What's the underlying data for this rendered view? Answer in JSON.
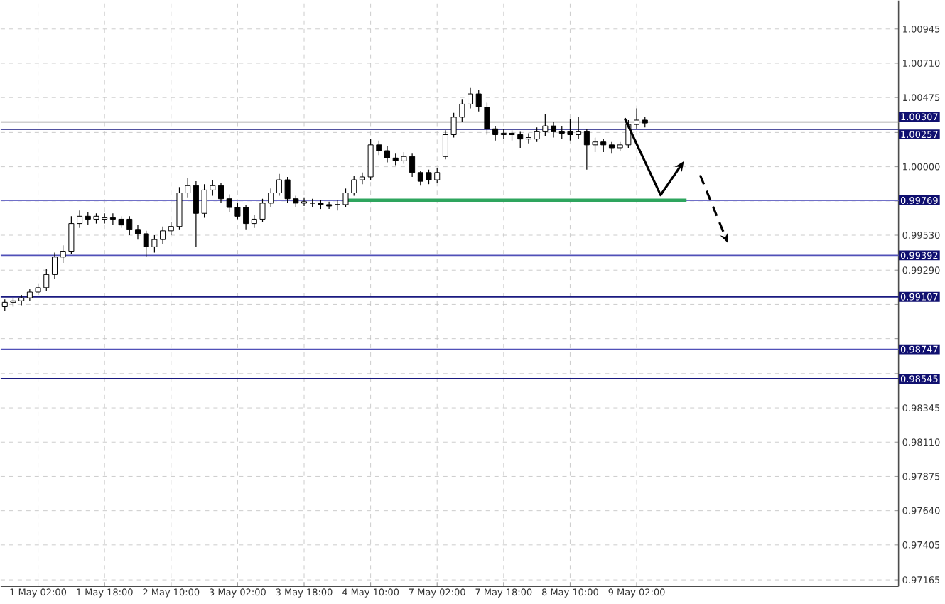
{
  "chart_data": {
    "type": "candlestick",
    "color": "#000000",
    "grid": true,
    "ylim": [
      0.9712,
      1.0114
    ],
    "categories": [
      null,
      null,
      null,
      null,
      "1 May 02:00",
      null,
      null,
      null,
      null,
      null,
      null,
      null,
      "1 May 18:00",
      null,
      null,
      null,
      null,
      null,
      null,
      null,
      "2 May 10:00",
      null,
      null,
      null,
      null,
      null,
      null,
      null,
      "3 May 02:00",
      null,
      null,
      null,
      null,
      null,
      null,
      null,
      "3 May 18:00",
      null,
      null,
      null,
      null,
      null,
      null,
      null,
      "4 May 10:00",
      null,
      null,
      null,
      null,
      null,
      null,
      null,
      "7 May 02:00",
      null,
      null,
      null,
      null,
      null,
      null,
      null,
      "7 May 18:00",
      null,
      null,
      null,
      null,
      null,
      null,
      null,
      "8 May 10:00",
      null,
      null,
      null,
      null,
      null,
      null,
      null,
      "9 May 02:00",
      null,
      null,
      null,
      null,
      null,
      null,
      null,
      null,
      null,
      null,
      null,
      null,
      null,
      null,
      null,
      null,
      null,
      null,
      null,
      null,
      null,
      null,
      null,
      null,
      null,
      null,
      null,
      null,
      null,
      null,
      null
    ],
    "yticks": [
      {
        "value": 0.97165,
        "label": "0.97165"
      },
      {
        "value": 0.97405,
        "label": "0.97405"
      },
      {
        "value": 0.9764,
        "label": "0.97640"
      },
      {
        "value": 0.97875,
        "label": "0.97875"
      },
      {
        "value": 0.9811,
        "label": "0.98110"
      },
      {
        "value": 0.98345,
        "label": "0.98345"
      },
      {
        "value": 0.9858,
        "label": null
      },
      {
        "value": 0.9882,
        "label": null
      },
      {
        "value": 0.99055,
        "label": null
      },
      {
        "value": 0.9929,
        "label": "0.99290"
      },
      {
        "value": 0.9953,
        "label": "0.99530"
      },
      {
        "value": 0.99765,
        "label": null
      },
      {
        "value": 1.0,
        "label": "1.00000"
      },
      {
        "value": 1.00235,
        "label": null
      },
      {
        "value": 1.00475,
        "label": "1.00475"
      },
      {
        "value": 1.0071,
        "label": "1.00710"
      },
      {
        "value": 1.00945,
        "label": "1.00945"
      }
    ],
    "ref_lines": [
      {
        "axis": "y",
        "value": 1.00307,
        "label": "1.00307",
        "color": "#a0a0a0"
      },
      {
        "axis": "y",
        "value": 1.00257,
        "label": "1.00257",
        "color": "#1a1a80"
      },
      {
        "axis": "y",
        "value": 0.99769,
        "label": "0.99769",
        "color": "#7070c8"
      },
      {
        "axis": "y",
        "value": 0.99392,
        "label": "0.99392",
        "color": "#5050b8"
      },
      {
        "axis": "y",
        "value": 0.99107,
        "label": "0.99107",
        "color": "#1a1a80"
      },
      {
        "axis": "y",
        "value": 0.98747,
        "label": "0.98747",
        "color": "#5050b8"
      },
      {
        "axis": "y",
        "value": 0.98545,
        "label": "0.98545",
        "color": "#1a1a80"
      }
    ],
    "series": [
      {
        "type": "line",
        "color": "#2ea55e",
        "values": [
          null,
          null,
          null,
          null,
          null,
          null,
          null,
          null,
          null,
          null,
          null,
          null,
          null,
          null,
          null,
          null,
          null,
          null,
          null,
          null,
          null,
          null,
          null,
          null,
          null,
          null,
          null,
          null,
          null,
          null,
          null,
          null,
          null,
          null,
          null,
          null,
          null,
          null,
          null,
          null,
          null,
          0.9977,
          0.9977,
          0.9977,
          0.9977,
          0.9977,
          0.9977,
          0.9977,
          0.9977,
          0.9977,
          0.9977,
          0.9977,
          0.9977,
          0.9977,
          0.9977,
          0.9977,
          0.9977,
          0.9977,
          0.9977,
          0.9977,
          0.9977,
          0.9977,
          0.9977,
          0.9977,
          0.9977,
          0.9977,
          0.9977,
          0.9977,
          0.9977,
          0.9977,
          0.9977,
          0.9977,
          0.9977,
          0.9977,
          0.9977,
          0.9977,
          0.9977,
          0.9977,
          0.9977,
          0.9977,
          0.9977,
          0.9977,
          0.9977,
          null,
          null,
          null,
          null,
          null,
          null,
          null,
          null,
          null,
          null,
          null,
          null,
          null,
          null,
          null,
          null,
          null,
          null,
          null,
          null,
          null,
          null,
          null,
          null,
          null
        ]
      }
    ],
    "ohlc": [
      [
        0.9904,
        0.9909,
        0.9901,
        0.9907
      ],
      [
        0.9907,
        0.991,
        0.9904,
        0.9908
      ],
      [
        0.9908,
        0.9912,
        0.9905,
        0.991
      ],
      [
        0.991,
        0.9916,
        0.9908,
        0.9914
      ],
      [
        0.9914,
        0.992,
        0.9912,
        0.9917
      ],
      [
        0.9917,
        0.993,
        0.9915,
        0.9926
      ],
      [
        0.9926,
        0.9941,
        0.9923,
        0.9938
      ],
      [
        0.9938,
        0.9946,
        0.9934,
        0.9942
      ],
      [
        0.9942,
        0.9966,
        0.994,
        0.9961
      ],
      [
        0.9961,
        0.997,
        0.9958,
        0.9966
      ],
      [
        0.9966,
        0.9969,
        0.996,
        0.9964
      ],
      [
        0.9964,
        0.9968,
        0.9961,
        0.9966
      ],
      [
        0.9964,
        0.9968,
        0.9961,
        0.9965
      ],
      [
        0.9965,
        0.9968,
        0.996,
        0.9964
      ],
      [
        0.9964,
        0.9966,
        0.9958,
        0.996
      ],
      [
        0.9964,
        0.9966,
        0.9953,
        0.9957
      ],
      [
        0.9957,
        0.996,
        0.995,
        0.9954
      ],
      [
        0.9954,
        0.9956,
        0.9938,
        0.9945
      ],
      [
        0.9945,
        0.9953,
        0.9941,
        0.995
      ],
      [
        0.995,
        0.9959,
        0.9947,
        0.9956
      ],
      [
        0.9956,
        0.9962,
        0.9953,
        0.9959
      ],
      [
        0.9959,
        0.9986,
        0.9957,
        0.9982
      ],
      [
        0.9982,
        0.9992,
        0.9979,
        0.9987
      ],
      [
        0.9987,
        0.999,
        0.9945,
        0.9968
      ],
      [
        0.9968,
        0.9988,
        0.9965,
        0.9984
      ],
      [
        0.9984,
        0.9991,
        0.998,
        0.9987
      ],
      [
        0.9987,
        0.9989,
        0.9975,
        0.9978
      ],
      [
        0.9978,
        0.9981,
        0.9969,
        0.9972
      ],
      [
        0.9972,
        0.9975,
        0.9964,
        0.9966
      ],
      [
        0.9972,
        0.9974,
        0.9957,
        0.9961
      ],
      [
        0.9961,
        0.9967,
        0.9958,
        0.9964
      ],
      [
        0.9964,
        0.9978,
        0.9962,
        0.9975
      ],
      [
        0.9975,
        0.9985,
        0.9972,
        0.9982
      ],
      [
        0.9982,
        0.9995,
        0.998,
        0.9991
      ],
      [
        0.9991,
        0.9993,
        0.9975,
        0.9978
      ],
      [
        0.9978,
        0.998,
        0.9972,
        0.9975
      ],
      [
        0.9975,
        0.9979,
        0.9973,
        0.9976
      ],
      [
        0.9975,
        0.9978,
        0.9972,
        0.9975
      ],
      [
        0.9975,
        0.9977,
        0.9971,
        0.9974
      ],
      [
        0.9974,
        0.9976,
        0.9971,
        0.9973
      ],
      [
        0.9974,
        0.9977,
        0.997,
        0.9974
      ],
      [
        0.9974,
        0.9985,
        0.9972,
        0.9982
      ],
      [
        0.9982,
        0.9994,
        0.998,
        0.9991
      ],
      [
        0.9991,
        0.9996,
        0.9988,
        0.9993
      ],
      [
        0.9993,
        1.0019,
        0.9991,
        1.0015
      ],
      [
        1.0015,
        1.0018,
        1.0008,
        1.0011
      ],
      [
        1.0011,
        1.0014,
        1.0003,
        1.0006
      ],
      [
        1.0006,
        1.0009,
        1.0001,
        1.0004
      ],
      [
        1.0004,
        1.001,
        1.0002,
        1.0007
      ],
      [
        1.0007,
        1.0009,
        0.9993,
        0.9996
      ],
      [
        0.9996,
        0.9997,
        0.9987,
        0.999
      ],
      [
        0.9996,
        0.9998,
        0.9988,
        0.9991
      ],
      [
        0.9991,
        0.9999,
        0.9989,
        0.9996
      ],
      [
        1.0007,
        1.0025,
        1.0005,
        1.0022
      ],
      [
        1.0022,
        1.0037,
        1.002,
        1.0034
      ],
      [
        1.0034,
        1.0046,
        1.0031,
        1.0043
      ],
      [
        1.0043,
        1.0054,
        1.004,
        1.005
      ],
      [
        1.005,
        1.0053,
        1.0038,
        1.0041
      ],
      [
        1.0041,
        1.0044,
        1.0022,
        1.0026
      ],
      [
        1.0026,
        1.0028,
        1.0018,
        1.0022
      ],
      [
        1.0022,
        1.0026,
        1.0019,
        1.0023
      ],
      [
        1.0023,
        1.0025,
        1.0018,
        1.0022
      ],
      [
        1.0022,
        1.0024,
        1.0013,
        1.0019
      ],
      [
        1.0019,
        1.0023,
        1.0016,
        1.002
      ],
      [
        1.0019,
        1.0027,
        1.0017,
        1.0024
      ],
      [
        1.0024,
        1.0036,
        1.0021,
        1.0028
      ],
      [
        1.0028,
        1.0031,
        1.002,
        1.0024
      ],
      [
        1.0024,
        1.0028,
        1.0019,
        1.0023
      ],
      [
        1.0024,
        1.0033,
        1.0018,
        1.0022
      ],
      [
        1.0022,
        1.0034,
        1.0019,
        1.0024
      ],
      [
        1.0024,
        1.0026,
        0.9998,
        1.0015
      ],
      [
        1.0015,
        1.002,
        1.001,
        1.0017
      ],
      [
        1.0017,
        1.0019,
        1.001,
        1.0015
      ],
      [
        1.0015,
        1.0017,
        1.0009,
        1.0013
      ],
      [
        1.0013,
        1.0017,
        1.0011,
        1.0015
      ],
      [
        1.0015,
        1.0032,
        1.0013,
        1.0029
      ],
      [
        1.0029,
        1.004,
        1.0026,
        1.0032
      ],
      [
        1.0032,
        1.0034,
        1.0027,
        1.003
      ],
      null,
      null,
      null,
      null,
      null,
      null,
      null,
      null,
      null,
      null,
      null,
      null,
      null,
      null,
      null,
      null,
      null,
      null,
      null,
      null,
      null,
      null,
      null,
      null,
      null,
      null,
      null,
      null,
      null,
      null
    ]
  }
}
